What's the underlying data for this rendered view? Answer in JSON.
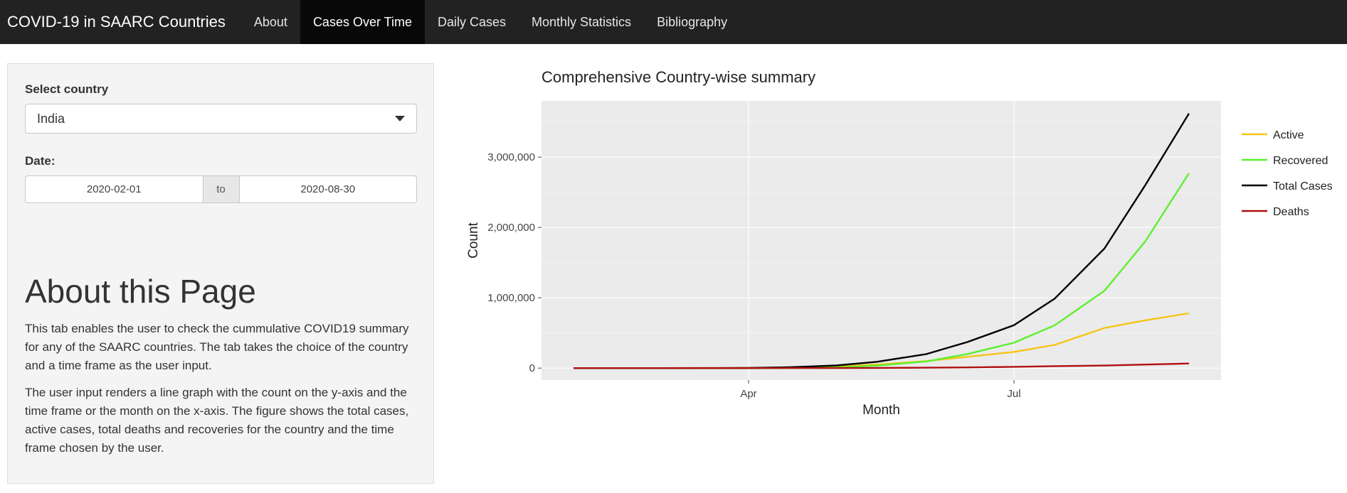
{
  "app": {
    "brand": "COVID-19 in SAARC Countries",
    "nav": [
      {
        "label": "About",
        "active": false
      },
      {
        "label": "Cases Over Time",
        "active": true
      },
      {
        "label": "Daily Cases",
        "active": false
      },
      {
        "label": "Monthly Statistics",
        "active": false
      },
      {
        "label": "Bibliography",
        "active": false
      }
    ]
  },
  "sidebar": {
    "country_label": "Select country",
    "country_value": "India",
    "date_label": "Date:",
    "date_start": "2020-02-01",
    "date_sep": "to",
    "date_end": "2020-08-30",
    "about_heading": "About this Page",
    "about_p1": "This tab enables the user to check the cummulative COVID19 summary for any of the SAARC countries. The tab takes the choice of the country and a time frame as the user input.",
    "about_p2": "The user input renders a line graph with the count on the y-axis and the time frame or the month on the x-axis. The figure shows the total cases, active cases, total deaths and recoveries for the country and the time frame chosen by the user."
  },
  "colors": {
    "active": "#f5c518",
    "recovered": "#5cf02e",
    "total": "#000000",
    "deaths": "#b01010",
    "panel": "#ebebeb"
  },
  "chart_data": {
    "type": "line",
    "title": "Comprehensive Country-wise summary",
    "xlabel": "Month",
    "ylabel": "Count",
    "x_ticks": [
      "Apr",
      "Jul"
    ],
    "y_ticks": [
      "0",
      "1,000,000",
      "2,000,000",
      "3,000,000"
    ],
    "ylim": [
      -170000,
      3800000
    ],
    "xlim": [
      "2020-01-21",
      "2020-09-10"
    ],
    "x": [
      "2020-02-01",
      "2020-03-01",
      "2020-04-01",
      "2020-04-15",
      "2020-05-01",
      "2020-05-15",
      "2020-06-01",
      "2020-06-15",
      "2020-07-01",
      "2020-07-15",
      "2020-08-01",
      "2020-08-15",
      "2020-08-30"
    ],
    "series": [
      {
        "name": "Active",
        "color": "#f5c518",
        "values": [
          0,
          20,
          1800,
          9000,
          25000,
          50000,
          100000,
          160000,
          230000,
          330000,
          570000,
          680000,
          780000
        ]
      },
      {
        "name": "Recovered",
        "color": "#5cf02e",
        "values": [
          0,
          3,
          160,
          1500,
          9000,
          35000,
          95000,
          200000,
          360000,
          610000,
          1100000,
          1800000,
          2770000
        ]
      },
      {
        "name": "Total Cases",
        "color": "#000000",
        "values": [
          1,
          3,
          2000,
          12000,
          37000,
          90000,
          200000,
          370000,
          610000,
          990000,
          1700000,
          2600000,
          3620000
        ]
      },
      {
        "name": "Deaths",
        "color": "#b01010",
        "values": [
          0,
          0,
          50,
          400,
          1200,
          3000,
          6000,
          10000,
          18000,
          28000,
          36000,
          50000,
          65000
        ]
      }
    ],
    "legend_position": "right",
    "grid": true
  }
}
